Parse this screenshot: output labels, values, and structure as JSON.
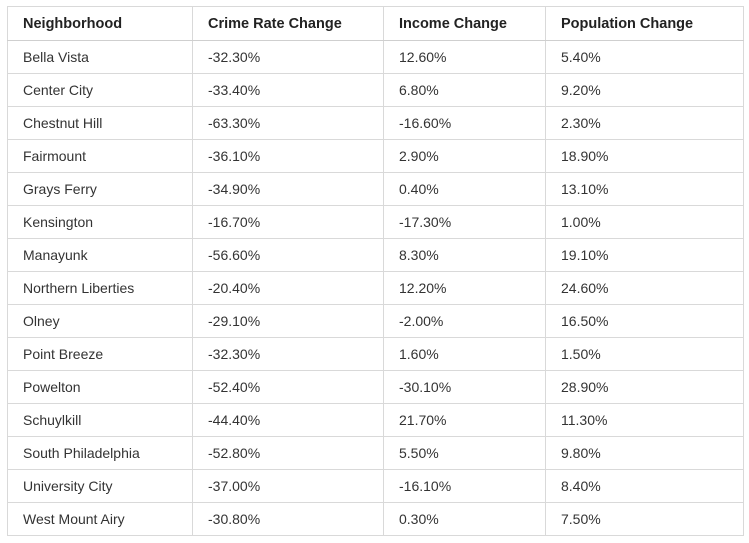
{
  "table": {
    "headers": [
      "Neighborhood",
      "Crime Rate Change",
      "Income Change",
      "Population Change"
    ],
    "rows": [
      [
        "Bella Vista",
        "-32.30%",
        "12.60%",
        "5.40%"
      ],
      [
        "Center City",
        "-33.40%",
        "6.80%",
        "9.20%"
      ],
      [
        "Chestnut Hill",
        "-63.30%",
        "-16.60%",
        "2.30%"
      ],
      [
        "Fairmount",
        "-36.10%",
        "2.90%",
        "18.90%"
      ],
      [
        "Grays Ferry",
        "-34.90%",
        "0.40%",
        "13.10%"
      ],
      [
        "Kensington",
        "-16.70%",
        "-17.30%",
        "1.00%"
      ],
      [
        "Manayunk",
        "-56.60%",
        "8.30%",
        "19.10%"
      ],
      [
        "Northern Liberties",
        "-20.40%",
        "12.20%",
        "24.60%"
      ],
      [
        "Olney",
        "-29.10%",
        "-2.00%",
        "16.50%"
      ],
      [
        "Point Breeze",
        "-32.30%",
        "1.60%",
        "1.50%"
      ],
      [
        "Powelton",
        "-52.40%",
        "-30.10%",
        "28.90%"
      ],
      [
        "Schuylkill",
        "-44.40%",
        "21.70%",
        "11.30%"
      ],
      [
        "South Philadelphia",
        "-52.80%",
        "5.50%",
        "9.80%"
      ],
      [
        "University City",
        "-37.00%",
        "-16.10%",
        "8.40%"
      ],
      [
        "West Mount Airy",
        "-30.80%",
        "0.30%",
        "7.50%"
      ]
    ]
  }
}
